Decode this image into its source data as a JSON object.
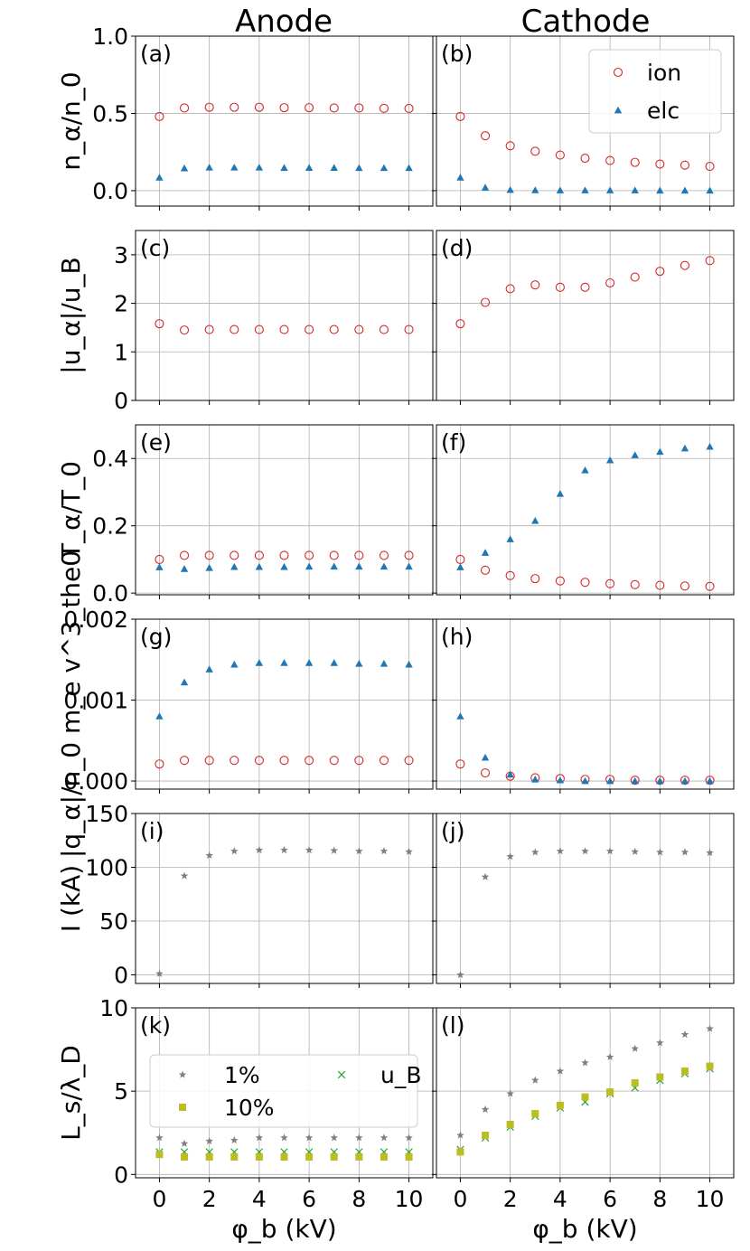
{
  "columns": [
    "Anode",
    "Cathode"
  ],
  "xlabel": "φ_b (kV)",
  "xticks": [
    0,
    2,
    4,
    6,
    8,
    10
  ],
  "legend_top": [
    {
      "label": "ion",
      "color": "#d62728",
      "marker": "open-circle"
    },
    {
      "label": "elc",
      "color": "#1f77b4",
      "marker": "triangle"
    }
  ],
  "legend_bottom": [
    {
      "label": "1%",
      "color": "#7f7f7f",
      "marker": "star"
    },
    {
      "label": "u_B",
      "color": "#2ca02c",
      "marker": "x"
    },
    {
      "label": "10%",
      "color": "#bcbd22",
      "marker": "square"
    }
  ],
  "chart_data": [
    {
      "type": "scatter",
      "row_label": "n_α/n_0",
      "ylim": [
        -0.1,
        1.0
      ],
      "yticks": [
        "0.0",
        "0.5",
        "1.0"
      ],
      "ytick_values": [
        0,
        0.5,
        1.0
      ],
      "x": [
        0,
        1,
        2,
        3,
        4,
        5,
        6,
        7,
        8,
        9,
        10
      ],
      "panels": [
        {
          "label": "(a)",
          "series": [
            {
              "name": "ion",
              "values": [
                0.48,
                0.535,
                0.54,
                0.54,
                0.54,
                0.537,
                0.537,
                0.535,
                0.535,
                0.533,
                0.532
              ]
            },
            {
              "name": "elc",
              "values": [
                0.085,
                0.145,
                0.15,
                0.15,
                0.15,
                0.148,
                0.148,
                0.148,
                0.147,
                0.147,
                0.147
              ]
            }
          ]
        },
        {
          "label": "(b)",
          "series": [
            {
              "name": "ion",
              "values": [
                0.48,
                0.355,
                0.29,
                0.255,
                0.23,
                0.21,
                0.195,
                0.183,
                0.172,
                0.165,
                0.157
              ]
            },
            {
              "name": "elc",
              "values": [
                0.085,
                0.02,
                0.005,
                0.003,
                0.002,
                0.002,
                0.002,
                0.002,
                0.001,
                0.001,
                0.001
              ]
            }
          ]
        }
      ]
    },
    {
      "type": "scatter",
      "row_label": "|u_α|/u_B",
      "ylim": [
        0,
        3.5
      ],
      "yticks": [
        "0",
        "1",
        "2",
        "3"
      ],
      "ytick_values": [
        0,
        1,
        2,
        3
      ],
      "x": [
        0,
        1,
        2,
        3,
        4,
        5,
        6,
        7,
        8,
        9,
        10
      ],
      "panels": [
        {
          "label": "(c)",
          "series": [
            {
              "name": "ion",
              "values": [
                1.58,
                1.45,
                1.46,
                1.46,
                1.46,
                1.46,
                1.46,
                1.46,
                1.46,
                1.46,
                1.46
              ]
            }
          ]
        },
        {
          "label": "(d)",
          "series": [
            {
              "name": "ion",
              "values": [
                1.58,
                2.02,
                2.3,
                2.38,
                2.33,
                2.33,
                2.42,
                2.54,
                2.66,
                2.78,
                2.88
              ]
            }
          ]
        }
      ]
    },
    {
      "type": "scatter",
      "row_label": "T_α/T_0",
      "ylim": [
        -0.005,
        0.5
      ],
      "yticks": [
        "0.0",
        "0.2",
        "0.4"
      ],
      "ytick_values": [
        0,
        0.2,
        0.4
      ],
      "x": [
        0,
        1,
        2,
        3,
        4,
        5,
        6,
        7,
        8,
        9,
        10
      ],
      "panels": [
        {
          "label": "(e)",
          "series": [
            {
              "name": "ion",
              "values": [
                0.1,
                0.112,
                0.112,
                0.112,
                0.112,
                0.112,
                0.112,
                0.112,
                0.112,
                0.112,
                0.112
              ]
            },
            {
              "name": "elc",
              "values": [
                0.077,
                0.072,
                0.075,
                0.078,
                0.078,
                0.078,
                0.079,
                0.079,
                0.079,
                0.079,
                0.079
              ]
            }
          ]
        },
        {
          "label": "(f)",
          "series": [
            {
              "name": "ion",
              "values": [
                0.1,
                0.068,
                0.052,
                0.043,
                0.036,
                0.032,
                0.028,
                0.025,
                0.023,
                0.021,
                0.02
              ]
            },
            {
              "name": "elc",
              "values": [
                0.077,
                0.12,
                0.16,
                0.215,
                0.295,
                0.365,
                0.395,
                0.41,
                0.42,
                0.43,
                0.435
              ]
            }
          ]
        }
      ]
    },
    {
      "type": "scatter",
      "row_label": "|q_α|/n_0 m_e v^3_the0",
      "ylim": [
        -0.0001,
        0.002
      ],
      "yticks": [
        "0.000",
        "0.001",
        "0.002"
      ],
      "ytick_values": [
        0,
        0.001,
        0.002
      ],
      "x": [
        0,
        1,
        2,
        3,
        4,
        5,
        6,
        7,
        8,
        9,
        10
      ],
      "panels": [
        {
          "label": "(g)",
          "series": [
            {
              "name": "ion",
              "values": [
                0.00021,
                0.000255,
                0.000255,
                0.000255,
                0.000255,
                0.000255,
                0.000255,
                0.000255,
                0.000255,
                0.000255,
                0.000255
              ]
            },
            {
              "name": "elc",
              "values": [
                0.0008,
                0.00122,
                0.00138,
                0.00144,
                0.00146,
                0.00146,
                0.00146,
                0.00146,
                0.00145,
                0.00145,
                0.00144
              ]
            }
          ]
        },
        {
          "label": "(h)",
          "series": [
            {
              "name": "ion",
              "values": [
                0.00021,
                0.0001,
                6e-05,
                4e-05,
                3e-05,
                2e-05,
                2e-05,
                1e-05,
                1e-05,
                1e-05,
                1e-05
              ]
            },
            {
              "name": "elc",
              "values": [
                0.0008,
                0.00029,
                8e-05,
                2e-05,
                1e-05,
                0.0,
                0.0,
                0.0,
                0.0,
                0.0,
                0.0
              ]
            }
          ]
        }
      ]
    },
    {
      "type": "scatter",
      "row_label": "I (kA)",
      "ylim": [
        -8,
        150
      ],
      "yticks": [
        "0",
        "50",
        "100",
        "150"
      ],
      "ytick_values": [
        0,
        50,
        100,
        150
      ],
      "x": [
        0,
        1,
        2,
        3,
        4,
        5,
        6,
        7,
        8,
        9,
        10
      ],
      "panels": [
        {
          "label": "(i)",
          "series": [
            {
              "name": "1%",
              "values": [
                1,
                92,
                111,
                115,
                116,
                116,
                116,
                115.5,
                115,
                115,
                114.5
              ]
            }
          ]
        },
        {
          "label": "(j)",
          "series": [
            {
              "name": "1%",
              "values": [
                0,
                91,
                110,
                114,
                115,
                115,
                115,
                114.5,
                114,
                114,
                113.5
              ]
            }
          ]
        }
      ]
    },
    {
      "type": "scatter",
      "row_label": "L_s/λ_D",
      "ylim": [
        -0.2,
        10
      ],
      "yticks": [
        "0",
        "5",
        "10"
      ],
      "ytick_values": [
        0,
        5,
        10
      ],
      "x": [
        0,
        1,
        2,
        3,
        4,
        5,
        6,
        7,
        8,
        9,
        10
      ],
      "panels": [
        {
          "label": "(k)",
          "series": [
            {
              "name": "1%",
              "values": [
                2.2,
                1.85,
                2.0,
                2.05,
                2.2,
                2.2,
                2.2,
                2.2,
                2.2,
                2.2,
                2.2
              ]
            },
            {
              "name": "u_B",
              "values": [
                1.35,
                1.35,
                1.35,
                1.35,
                1.35,
                1.35,
                1.35,
                1.35,
                1.35,
                1.35,
                1.35
              ]
            },
            {
              "name": "10%",
              "values": [
                1.2,
                1.05,
                1.05,
                1.05,
                1.05,
                1.05,
                1.05,
                1.05,
                1.05,
                1.05,
                1.05
              ]
            }
          ]
        },
        {
          "label": "(l)",
          "series": [
            {
              "name": "1%",
              "values": [
                2.35,
                3.9,
                4.85,
                5.65,
                6.2,
                6.7,
                7.05,
                7.55,
                7.9,
                8.4,
                8.75
              ]
            },
            {
              "name": "u_B",
              "values": [
                1.5,
                2.2,
                2.85,
                3.5,
                4.0,
                4.35,
                4.85,
                5.2,
                5.65,
                6.05,
                6.35
              ]
            },
            {
              "name": "10%",
              "values": [
                1.35,
                2.35,
                3.0,
                3.65,
                4.15,
                4.65,
                4.95,
                5.5,
                5.85,
                6.2,
                6.5
              ]
            }
          ]
        }
      ]
    }
  ]
}
